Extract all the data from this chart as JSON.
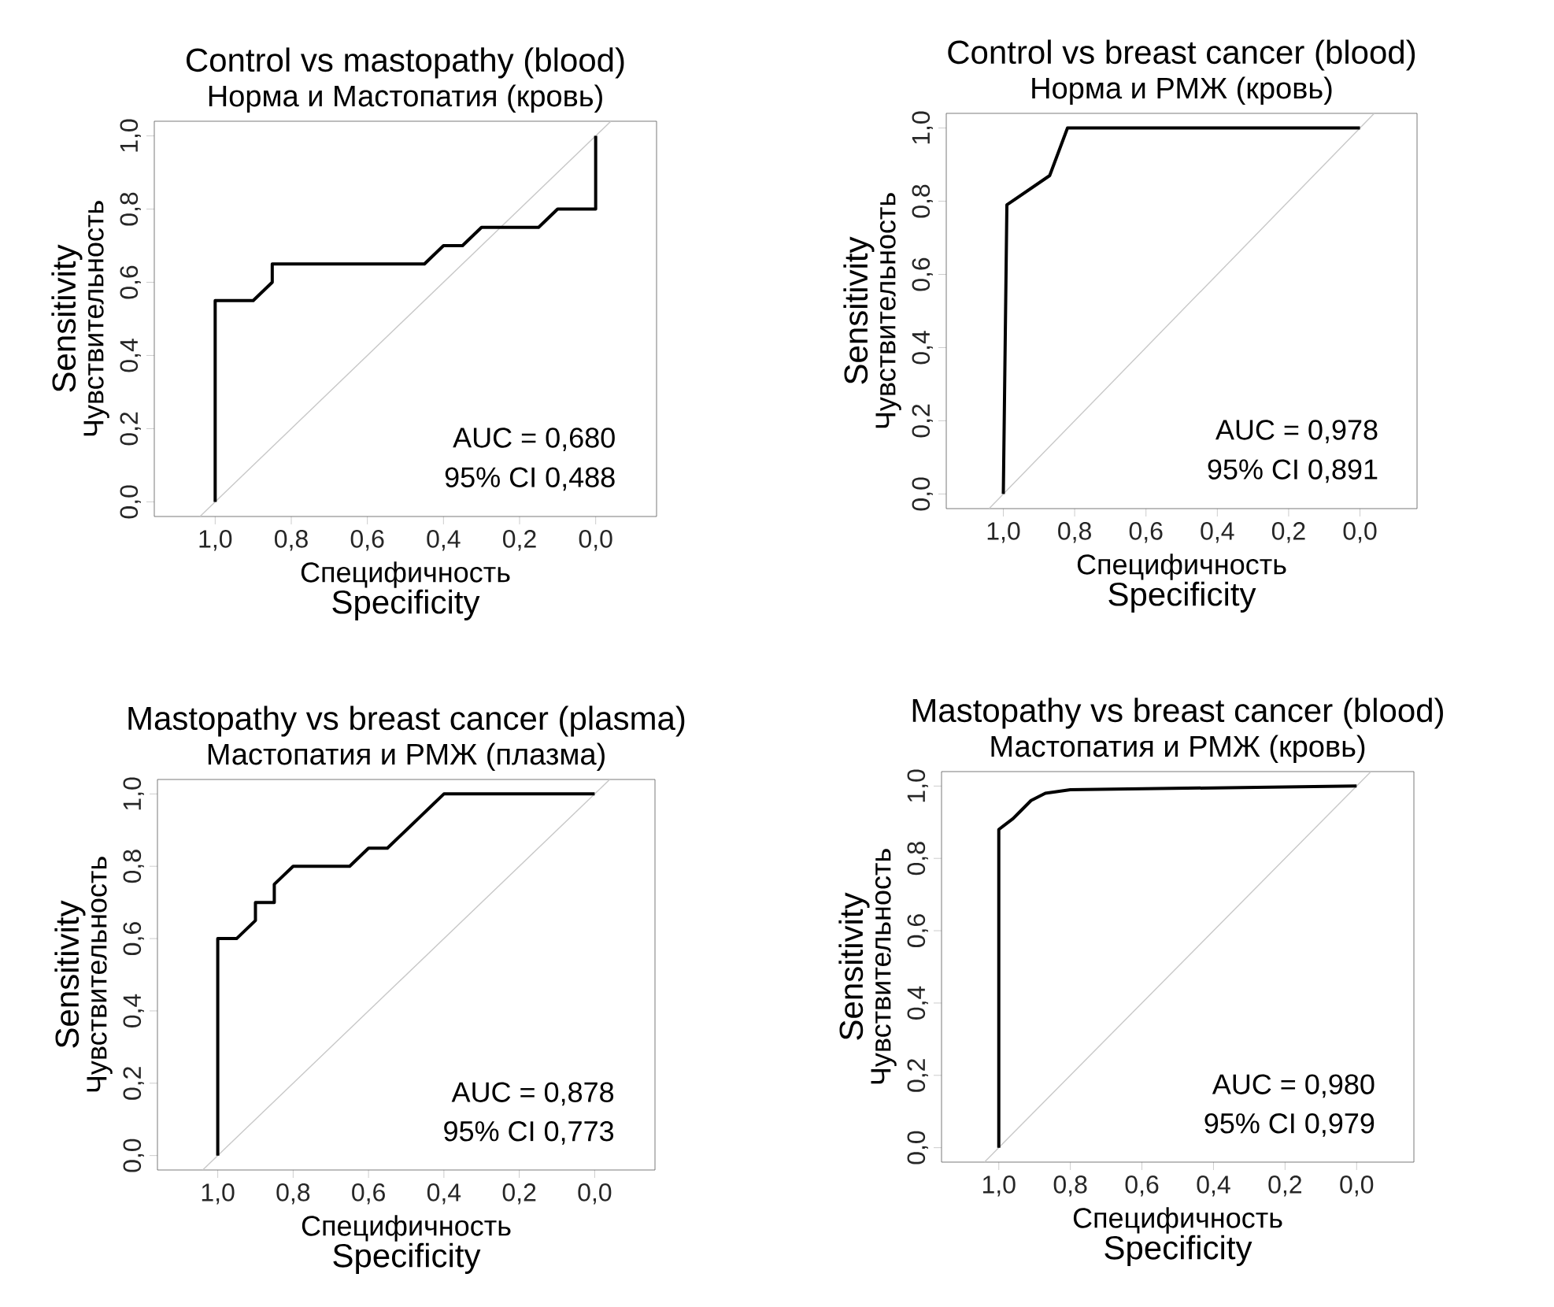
{
  "chart_data": [
    {
      "type": "line",
      "title": "Control vs mastopathy (blood)",
      "subtitle": "Норма и Мастопатия (кровь)",
      "xlabel": [
        "Специфичность",
        "Specificity"
      ],
      "ylabel": [
        "Sensitivity",
        "Чувствительность"
      ],
      "annotations": [
        "AUC = 0,680",
        "95% CI 0,488"
      ],
      "xlim": [
        1.16,
        -0.16
      ],
      "ylim": [
        -0.04,
        1.04
      ],
      "xticks": [
        {
          "value": 1,
          "label": "1,0"
        },
        {
          "value": 0.8,
          "label": "0,8"
        },
        {
          "value": 0.6,
          "label": "0,6"
        },
        {
          "value": 0.4,
          "label": "0,4"
        },
        {
          "value": 0.2,
          "label": "0,2"
        },
        {
          "value": 0,
          "label": "0,0"
        }
      ],
      "yticks": [
        {
          "value": 0,
          "label": "0,0"
        },
        {
          "value": 0.2,
          "label": "0,2"
        },
        {
          "value": 0.4,
          "label": "0,4"
        },
        {
          "value": 0.6,
          "label": "0,6"
        },
        {
          "value": 0.8,
          "label": "0,8"
        },
        {
          "value": 1,
          "label": "1,0"
        }
      ],
      "series": [
        {
          "color": "#c8c8c8",
          "x": [
            1.04,
            -0.04
          ],
          "values": [
            -0.04,
            1.04
          ]
        },
        {
          "color": "#000000",
          "x": [
            1,
            1,
            0.9,
            0.85,
            0.85,
            0.45,
            0.4,
            0.35,
            0.3,
            0.15,
            0.1,
            0,
            0
          ],
          "values": [
            0,
            0.55,
            0.55,
            0.6,
            0.65,
            0.65,
            0.7,
            0.7,
            0.75,
            0.75,
            0.8,
            0.8,
            1
          ]
        }
      ]
    },
    {
      "type": "line",
      "title": "Control vs breast cancer (blood)",
      "subtitle": "Норма и РМЖ (кровь)",
      "xlabel": [
        "Специфичность",
        "Specificity"
      ],
      "ylabel": [
        "Sensitivity",
        "Чувствительность"
      ],
      "annotations": [
        "AUC = 0,978",
        "95% CI 0,891"
      ],
      "xlim": [
        1.16,
        -0.16
      ],
      "ylim": [
        -0.04,
        1.04
      ],
      "xticks": [
        {
          "value": 1,
          "label": "1,0"
        },
        {
          "value": 0.8,
          "label": "0,8"
        },
        {
          "value": 0.6,
          "label": "0,6"
        },
        {
          "value": 0.4,
          "label": "0,4"
        },
        {
          "value": 0.2,
          "label": "0,2"
        },
        {
          "value": 0,
          "label": "0,0"
        }
      ],
      "yticks": [
        {
          "value": 0,
          "label": "0,0"
        },
        {
          "value": 0.2,
          "label": "0,2"
        },
        {
          "value": 0.4,
          "label": "0,4"
        },
        {
          "value": 0.6,
          "label": "0,6"
        },
        {
          "value": 0.8,
          "label": "0,8"
        },
        {
          "value": 1,
          "label": "1,0"
        }
      ],
      "series": [
        {
          "color": "#c8c8c8",
          "x": [
            1.04,
            -0.04
          ],
          "values": [
            -0.04,
            1.04
          ]
        },
        {
          "color": "#000000",
          "x": [
            1,
            0.99,
            0.87,
            0.82,
            0
          ],
          "values": [
            0,
            0.79,
            0.87,
            1,
            1
          ]
        }
      ]
    },
    {
      "type": "line",
      "title": "Mastopathy vs breast cancer (plasma)",
      "subtitle": "Мастопатия и РМЖ (плазма)",
      "xlabel": [
        "Специфичность",
        "Specificity"
      ],
      "ylabel": [
        "Sensitivity",
        "Чувствительность"
      ],
      "annotations": [
        "AUC = 0,878",
        "95% CI 0,773"
      ],
      "xlim": [
        1.16,
        -0.16
      ],
      "ylim": [
        -0.04,
        1.04
      ],
      "xticks": [
        {
          "value": 1,
          "label": "1,0"
        },
        {
          "value": 0.8,
          "label": "0,8"
        },
        {
          "value": 0.6,
          "label": "0,6"
        },
        {
          "value": 0.4,
          "label": "0,4"
        },
        {
          "value": 0.2,
          "label": "0,2"
        },
        {
          "value": 0,
          "label": "0,0"
        }
      ],
      "yticks": [
        {
          "value": 0,
          "label": "0,0"
        },
        {
          "value": 0.2,
          "label": "0,2"
        },
        {
          "value": 0.4,
          "label": "0,4"
        },
        {
          "value": 0.6,
          "label": "0,6"
        },
        {
          "value": 0.8,
          "label": "0,8"
        },
        {
          "value": 1,
          "label": "1,0"
        }
      ],
      "series": [
        {
          "color": "#c8c8c8",
          "x": [
            1.04,
            -0.04
          ],
          "values": [
            -0.04,
            1.04
          ]
        },
        {
          "color": "#000000",
          "x": [
            1,
            1,
            0.95,
            0.9,
            0.9,
            0.85,
            0.85,
            0.8,
            0.65,
            0.6,
            0.55,
            0.4,
            0
          ],
          "values": [
            0,
            0.6,
            0.6,
            0.65,
            0.7,
            0.7,
            0.75,
            0.8,
            0.8,
            0.85,
            0.85,
            1,
            1
          ]
        }
      ]
    },
    {
      "type": "line",
      "title": "Mastopathy vs breast cancer (blood)",
      "subtitle": "Мастопатия и РМЖ (кровь)",
      "xlabel": [
        "Специфичность",
        "Specificity"
      ],
      "ylabel": [
        "Sensitivity",
        "Чувствительность"
      ],
      "annotations": [
        "AUC = 0,980",
        "95% CI 0,979"
      ],
      "xlim": [
        1.16,
        -0.16
      ],
      "ylim": [
        -0.04,
        1.04
      ],
      "xticks": [
        {
          "value": 1,
          "label": "1,0"
        },
        {
          "value": 0.8,
          "label": "0,8"
        },
        {
          "value": 0.6,
          "label": "0,6"
        },
        {
          "value": 0.4,
          "label": "0,4"
        },
        {
          "value": 0.2,
          "label": "0,2"
        },
        {
          "value": 0,
          "label": "0,0"
        }
      ],
      "yticks": [
        {
          "value": 0,
          "label": "0,0"
        },
        {
          "value": 0.2,
          "label": "0,2"
        },
        {
          "value": 0.4,
          "label": "0,4"
        },
        {
          "value": 0.6,
          "label": "0,6"
        },
        {
          "value": 0.8,
          "label": "0,8"
        },
        {
          "value": 1,
          "label": "1,0"
        }
      ],
      "series": [
        {
          "color": "#c8c8c8",
          "x": [
            1.04,
            -0.04
          ],
          "values": [
            -0.04,
            1.04
          ]
        },
        {
          "color": "#000000",
          "x": [
            1,
            1,
            0.96,
            0.94,
            0.91,
            0.87,
            0.8,
            0
          ],
          "values": [
            0,
            0.88,
            0.91,
            0.93,
            0.96,
            0.98,
            0.99,
            1
          ]
        }
      ]
    }
  ]
}
